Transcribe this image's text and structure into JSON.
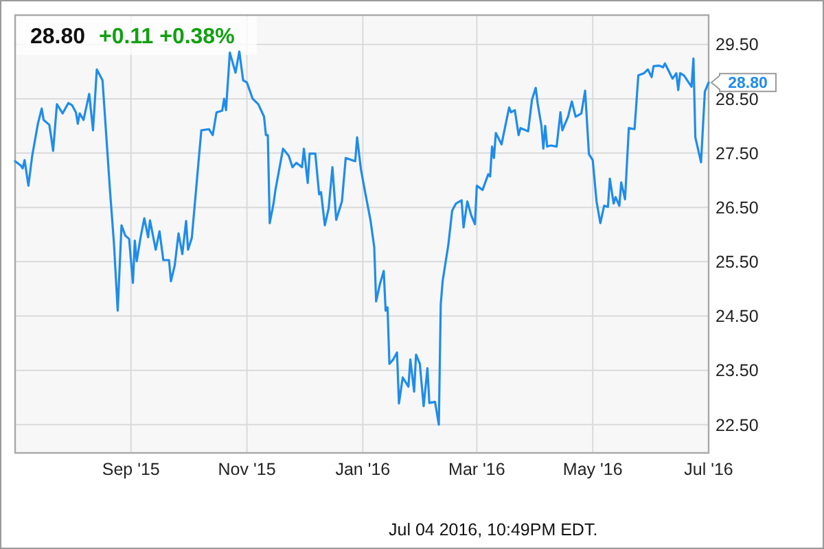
{
  "chart_data": {
    "type": "line",
    "title": "28.80",
    "subtitle": "+0.11 +0.38%",
    "x": [
      "2015-07-02",
      "2015-07-05",
      "2015-07-06",
      "2015-07-07",
      "2015-07-09",
      "2015-07-11",
      "2015-07-14",
      "2015-07-16",
      "2015-07-17",
      "2015-07-20",
      "2015-07-21",
      "2015-07-22",
      "2015-07-24",
      "2015-07-27",
      "2015-07-30",
      "2015-08-01",
      "2015-08-03",
      "2015-08-04",
      "2015-08-05",
      "2015-08-07",
      "2015-08-10",
      "2015-08-12",
      "2015-08-14",
      "2015-08-17",
      "2015-08-21",
      "2015-08-23",
      "2015-08-25",
      "2015-08-27",
      "2015-08-29",
      "2015-08-31",
      "2015-09-02",
      "2015-09-03",
      "2015-09-04",
      "2015-09-06",
      "2015-09-08",
      "2015-09-10",
      "2015-09-11",
      "2015-09-14",
      "2015-09-16",
      "2015-09-18",
      "2015-09-21",
      "2015-09-22",
      "2015-09-24",
      "2015-09-26",
      "2015-09-28",
      "2015-09-30",
      "2015-10-01",
      "2015-10-03",
      "2015-10-08",
      "2015-10-12",
      "2015-10-14",
      "2015-10-16",
      "2015-10-19",
      "2015-10-20",
      "2015-10-21",
      "2015-10-23",
      "2015-10-26",
      "2015-10-28",
      "2015-10-30",
      "2015-11-01",
      "2015-11-04",
      "2015-11-07",
      "2015-11-10",
      "2015-11-11",
      "2015-11-12",
      "2015-11-13",
      "2015-11-15",
      "2015-11-16",
      "2015-11-20",
      "2015-11-23",
      "2015-11-25",
      "2015-11-27",
      "2015-11-30",
      "2015-12-01",
      "2015-12-03",
      "2015-12-04",
      "2015-12-07",
      "2015-12-09",
      "2015-12-10",
      "2015-12-12",
      "2015-12-14",
      "2015-12-16",
      "2015-12-18",
      "2015-12-21",
      "2015-12-23",
      "2015-12-28",
      "2015-12-29",
      "2015-12-31",
      "2016-01-02",
      "2016-01-05",
      "2016-01-07",
      "2016-01-08",
      "2016-01-10",
      "2016-01-12",
      "2016-01-13",
      "2016-01-14",
      "2016-01-15",
      "2016-01-17",
      "2016-01-19",
      "2016-01-20",
      "2016-01-22",
      "2016-01-25",
      "2016-01-26",
      "2016-01-28",
      "2016-01-29",
      "2016-01-31",
      "2016-02-02",
      "2016-02-04",
      "2016-02-05",
      "2016-02-08",
      "2016-02-10",
      "2016-02-11",
      "2016-02-12",
      "2016-02-15",
      "2016-02-17",
      "2016-02-19",
      "2016-02-22",
      "2016-02-23",
      "2016-02-25",
      "2016-02-27",
      "2016-02-29",
      "2016-03-01",
      "2016-03-04",
      "2016-03-07",
      "2016-03-08",
      "2016-03-09",
      "2016-03-10",
      "2016-03-11",
      "2016-03-14",
      "2016-03-18",
      "2016-03-19",
      "2016-03-21",
      "2016-03-23",
      "2016-03-24",
      "2016-03-28",
      "2016-03-30",
      "2016-04-01",
      "2016-04-02",
      "2016-04-04",
      "2016-04-05",
      "2016-04-06",
      "2016-04-07",
      "2016-04-09",
      "2016-04-12",
      "2016-04-14",
      "2016-04-15",
      "2016-04-18",
      "2016-04-20",
      "2016-04-22",
      "2016-04-25",
      "2016-04-27",
      "2016-04-29",
      "2016-05-01",
      "2016-05-03",
      "2016-05-05",
      "2016-05-07",
      "2016-05-09",
      "2016-05-10",
      "2016-05-12",
      "2016-05-13",
      "2016-05-15",
      "2016-05-16",
      "2016-05-18",
      "2016-05-20",
      "2016-05-23",
      "2016-05-25",
      "2016-05-28",
      "2016-05-30",
      "2016-06-01",
      "2016-06-02",
      "2016-06-05",
      "2016-06-07",
      "2016-06-08",
      "2016-06-10",
      "2016-06-12",
      "2016-06-14",
      "2016-06-15",
      "2016-06-16",
      "2016-06-18",
      "2016-06-22",
      "2016-06-23",
      "2016-06-24",
      "2016-06-27",
      "2016-06-29",
      "2016-07-01"
    ],
    "series": [
      {
        "color": "#1f8ceb",
        "values": [
          27.35,
          27.27,
          27.22,
          27.37,
          26.9,
          27.45,
          28.04,
          28.32,
          28.11,
          28.02,
          27.79,
          27.54,
          28.4,
          28.23,
          28.42,
          28.38,
          28.25,
          28.04,
          28.23,
          28.11,
          28.59,
          27.92,
          29.04,
          28.84,
          26.78,
          25.85,
          24.6,
          26.17,
          25.98,
          25.92,
          25.11,
          25.89,
          25.51,
          25.94,
          26.3,
          25.95,
          26.26,
          25.72,
          26.06,
          25.53,
          25.53,
          25.14,
          25.43,
          26.02,
          25.64,
          26.25,
          25.72,
          25.94,
          27.92,
          27.94,
          27.83,
          28.25,
          28.28,
          28.5,
          28.29,
          29.35,
          28.98,
          29.37,
          28.84,
          28.8,
          28.5,
          28.4,
          28.17,
          27.83,
          27.83,
          26.21,
          26.57,
          26.82,
          27.58,
          27.45,
          27.24,
          27.32,
          27.24,
          27.58,
          26.95,
          27.49,
          27.49,
          26.74,
          26.78,
          26.17,
          26.48,
          27.24,
          26.27,
          26.61,
          27.41,
          27.35,
          27.79,
          27.2,
          26.82,
          26.27,
          25.77,
          24.77,
          25.09,
          25.33,
          24.6,
          24.66,
          23.62,
          23.7,
          23.83,
          22.89,
          23.37,
          23.2,
          23.7,
          23.11,
          23.79,
          23.62,
          22.84,
          23.54,
          22.9,
          22.92,
          22.5,
          24.71,
          25.14,
          25.81,
          26.44,
          26.57,
          26.63,
          26.13,
          26.61,
          26.36,
          26.19,
          26.9,
          26.82,
          27.11,
          27.07,
          27.62,
          27.41,
          27.87,
          27.66,
          28.34,
          28.25,
          28.29,
          27.83,
          27.96,
          27.9,
          28.48,
          28.7,
          28.42,
          28.0,
          27.58,
          28.0,
          27.62,
          27.64,
          27.62,
          28.25,
          27.92,
          28.17,
          28.45,
          28.17,
          28.23,
          28.65,
          27.48,
          27.37,
          26.61,
          26.21,
          26.53,
          26.51,
          27.03,
          26.57,
          26.69,
          26.53,
          26.96,
          26.65,
          27.96,
          27.94,
          28.93,
          28.97,
          29.04,
          28.9,
          29.1,
          29.11,
          29.08,
          29.15,
          29.01,
          28.87,
          28.97,
          28.66,
          28.97,
          28.93,
          28.72,
          29.24,
          27.79,
          27.33,
          28.63,
          28.8
        ]
      }
    ],
    "xlim": [
      "2015-07-02",
      "2016-07-01"
    ],
    "xticks": [
      {
        "value": "2015-09-01",
        "label": "Sep '15"
      },
      {
        "value": "2015-11-01",
        "label": "Nov '15"
      },
      {
        "value": "2016-01-01",
        "label": "Jan '16"
      },
      {
        "value": "2016-03-01",
        "label": "Mar '16"
      },
      {
        "value": "2016-05-01",
        "label": "May '16"
      },
      {
        "value": "2016-07-01",
        "label": "Jul '16"
      }
    ],
    "ylim": [
      21.98,
      30.04
    ],
    "yticks": [
      {
        "value": 22.5,
        "label": "22.50"
      },
      {
        "value": 23.5,
        "label": "23.50"
      },
      {
        "value": 24.5,
        "label": "24.50"
      },
      {
        "value": 25.5,
        "label": "25.50"
      },
      {
        "value": 26.5,
        "label": "26.50"
      },
      {
        "value": 27.5,
        "label": "27.50"
      },
      {
        "value": 28.5,
        "label": "28.50"
      },
      {
        "value": 29.5,
        "label": "29.50"
      }
    ],
    "grid": true,
    "annotations": [
      {
        "text": "28.80",
        "x": "2016-07-01",
        "y": 28.8
      },
      "Jul 04 2016, 10:49PM EDT."
    ]
  }
}
